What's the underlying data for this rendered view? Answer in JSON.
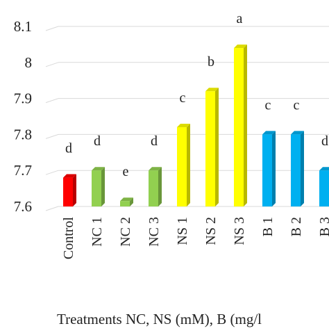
{
  "chart_data": {
    "type": "bar",
    "style": "3d-columns",
    "categories": [
      "Control",
      "NC 1",
      "NC 2",
      "NC 3",
      "NS 1",
      "NS 2",
      "NS 3",
      "B 1",
      "B 2",
      "B 3"
    ],
    "values": [
      7.68,
      7.7,
      7.615,
      7.7,
      7.82,
      7.92,
      8.04,
      7.8,
      7.8,
      7.7
    ],
    "significance_letters": [
      "d",
      "d",
      "e",
      "d",
      "c",
      "b",
      "a",
      "c",
      "c",
      "d"
    ],
    "colors": [
      "#ff0000",
      "#92d050",
      "#92d050",
      "#92d050",
      "#ffff00",
      "#ffff00",
      "#ffff00",
      "#00b0f0",
      "#00b0f0",
      "#00b0f0"
    ],
    "ylim": [
      7.6,
      8.1
    ],
    "yticks": [
      "7.6",
      "7.7",
      "7.8",
      "7.9",
      "8",
      "8.1"
    ],
    "xlabel": "Treatments NC, NS (mM), B (mg/l",
    "grid": "horizontal"
  }
}
